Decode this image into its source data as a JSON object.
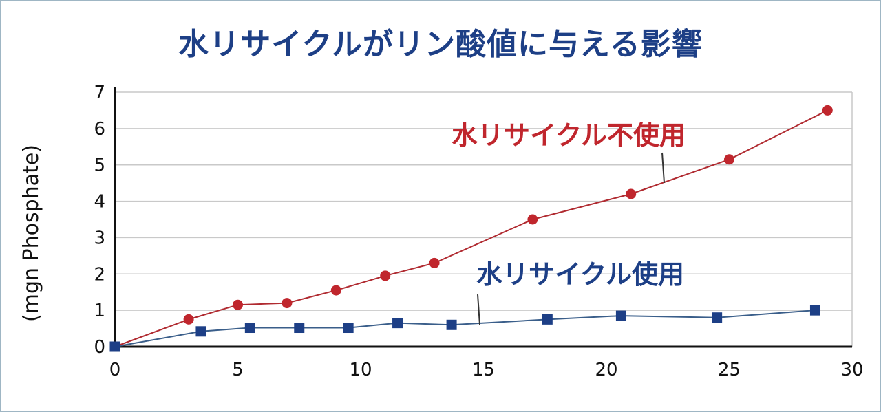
{
  "title": "水リサイクルがリン酸値に与える影響",
  "chart_data": {
    "type": "line",
    "title": "水リサイクルがリン酸値に与える影響",
    "xlabel": "",
    "ylabel": "(mgn Phosphate)",
    "xlim": [
      0,
      30
    ],
    "ylim": [
      0,
      7
    ],
    "xticks": [
      0,
      5,
      10,
      15,
      20,
      25,
      30
    ],
    "yticks": [
      0,
      1,
      2,
      3,
      4,
      5,
      6,
      7
    ],
    "grid": true,
    "series": [
      {
        "name": "水リサイクル不使用",
        "color": "#c0262d",
        "line_color": "#b02a30",
        "marker": "circle",
        "x": [
          0,
          3,
          5,
          7,
          9,
          11,
          13,
          17,
          21,
          25,
          29
        ],
        "y": [
          0,
          0.75,
          1.15,
          1.2,
          1.55,
          1.95,
          2.3,
          3.5,
          4.2,
          5.15,
          6.5
        ]
      },
      {
        "name": "水リサイクル使用",
        "color": "#1d3f86",
        "line_color": "#3a5e8a",
        "marker": "square",
        "x": [
          0,
          3.5,
          5.5,
          7.5,
          9.5,
          11.5,
          13.7,
          17.6,
          20.6,
          24.5,
          28.5
        ],
        "y": [
          0,
          0.42,
          0.52,
          0.52,
          0.52,
          0.65,
          0.6,
          0.75,
          0.85,
          0.8,
          1.0
        ]
      }
    ]
  }
}
